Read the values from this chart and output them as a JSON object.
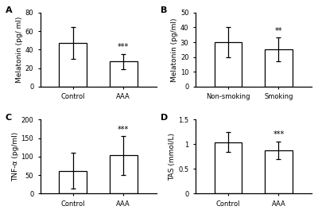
{
  "panels": [
    {
      "label": "A",
      "categories": [
        "Control",
        "AAA"
      ],
      "values": [
        47,
        27
      ],
      "errors": [
        17,
        8
      ],
      "ylabel": "Melatonin (pg/ ml)",
      "ylim": [
        0,
        80
      ],
      "yticks": [
        0,
        20,
        40,
        60,
        80
      ],
      "sig_bar": {
        "x": 1,
        "text": "***"
      }
    },
    {
      "label": "B",
      "categories": [
        "Non-smoking",
        "Smoking"
      ],
      "values": [
        30,
        25
      ],
      "errors": [
        10,
        8
      ],
      "ylabel": "Melatonin (pg/ml)",
      "ylim": [
        0,
        50
      ],
      "yticks": [
        0,
        10,
        20,
        30,
        40,
        50
      ],
      "sig_bar": {
        "x": 1,
        "text": "**"
      }
    },
    {
      "label": "C",
      "categories": [
        "Control",
        "AAA"
      ],
      "values": [
        62,
        103
      ],
      "errors": [
        48,
        52
      ],
      "ylabel": "TNF-α (pg/ml)",
      "ylim": [
        0,
        200
      ],
      "yticks": [
        0,
        50,
        100,
        150,
        200
      ],
      "sig_bar": {
        "x": 1,
        "text": "***"
      }
    },
    {
      "label": "D",
      "categories": [
        "Control",
        "AAA"
      ],
      "values": [
        1.04,
        0.88
      ],
      "errors": [
        0.2,
        0.18
      ],
      "ylabel": "TAS (mmol/L)",
      "ylim": [
        0.0,
        1.5
      ],
      "yticks": [
        0.0,
        0.5,
        1.0,
        1.5
      ],
      "sig_bar": {
        "x": 1,
        "text": "***"
      }
    }
  ],
  "bar_color": "#ffffff",
  "bar_edge_color": "#000000",
  "bar_width": 0.55,
  "background_color": "#ffffff",
  "fig_background": "#ffffff",
  "fontsize_label": 6.5,
  "fontsize_tick": 6,
  "fontsize_panel": 8,
  "fontsize_sig": 7,
  "capsize": 2.5,
  "elinewidth": 0.9,
  "linewidth": 0.9
}
